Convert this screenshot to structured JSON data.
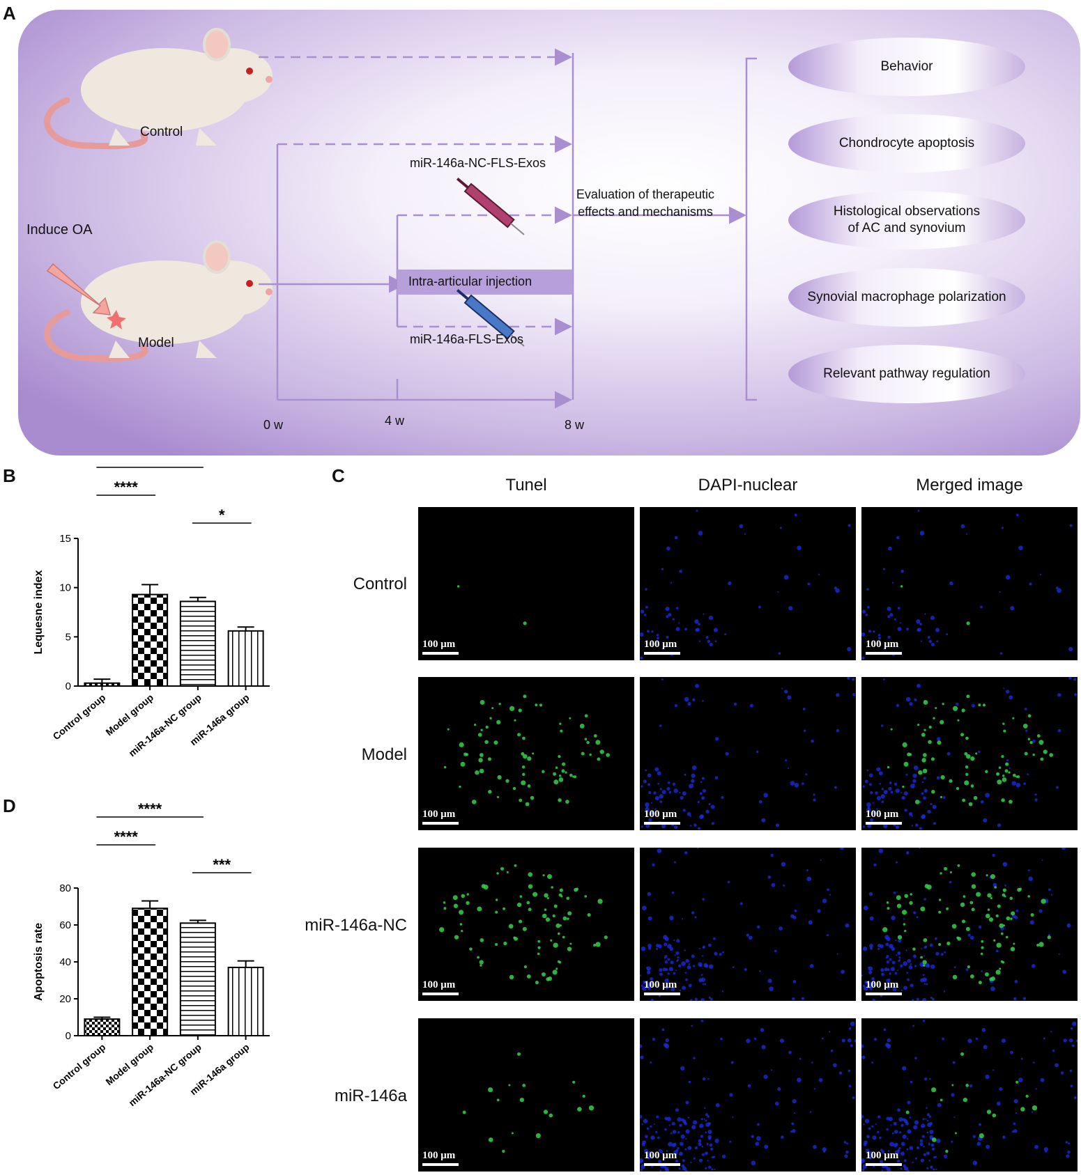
{
  "figure": {
    "panel_labels": {
      "a": "A",
      "b": "B",
      "c": "C",
      "d": "D"
    }
  },
  "panelA": {
    "control_label": "Control",
    "model_label": "Model",
    "induce_label": "Induce OA",
    "injection_label": "Intra-articular injection",
    "nc_exos_label": "miR-146a-NC-FLS-Exos",
    "exos_label": "miR-146a-FLS-Exos",
    "evaluation_line1": "Evaluation of therapeutic",
    "evaluation_line2": "effects and mechanisms",
    "timepoints": [
      "0 w",
      "4 w",
      "8 w"
    ],
    "outcomes": [
      {
        "line1": "Behavior",
        "line2": ""
      },
      {
        "line1": "Chondrocyte apoptosis",
        "line2": ""
      },
      {
        "line1": "Histological observations",
        "line2": "of AC and synovium"
      },
      {
        "line1": "Synovial macrophage polarization",
        "line2": ""
      },
      {
        "line1": "Relevant pathway regulation",
        "line2": ""
      }
    ],
    "colors": {
      "background": "#b9a2d6",
      "arrow": "#a98fd0",
      "oval": "#c2acdf"
    }
  },
  "chart_data": [
    {
      "panel": "B",
      "type": "bar",
      "categories": [
        "Control group",
        "Model group",
        "miR-146a-NC group",
        "miR-146a group"
      ],
      "values": [
        0.3,
        9.3,
        8.6,
        5.6
      ],
      "errors": [
        0.4,
        1.0,
        0.4,
        0.4
      ],
      "patterns": [
        "checker-small",
        "checker",
        "horizontal",
        "vertical"
      ],
      "ylabel": "Lequesne index",
      "ylim": [
        0,
        15
      ],
      "yticks": [
        0,
        5,
        10,
        15
      ],
      "significance": [
        {
          "from": 0,
          "to": 3,
          "label": "***"
        },
        {
          "from": 1,
          "to": 3,
          "label": "**"
        },
        {
          "from": 0,
          "to": 2,
          "label": "****"
        },
        {
          "from": 0,
          "to": 1,
          "label": "****"
        },
        {
          "from": 2,
          "to": 3,
          "label": "*"
        }
      ]
    },
    {
      "panel": "D",
      "type": "bar",
      "categories": [
        "Control group",
        "Model group",
        "miR-146a-NC group",
        "miR-146a group"
      ],
      "values": [
        9,
        69,
        61,
        37
      ],
      "errors": [
        1,
        4,
        1.5,
        3.5
      ],
      "patterns": [
        "checker-small",
        "checker",
        "horizontal",
        "vertical"
      ],
      "ylabel": "Apoptosis rate",
      "ylim": [
        0,
        80
      ],
      "yticks": [
        0,
        20,
        40,
        60,
        80
      ],
      "significance": [
        {
          "from": 0,
          "to": 3,
          "label": "***"
        },
        {
          "from": 1,
          "to": 3,
          "label": "***"
        },
        {
          "from": 0,
          "to": 2,
          "label": "****"
        },
        {
          "from": 0,
          "to": 1,
          "label": "****"
        },
        {
          "from": 2,
          "to": 3,
          "label": "***"
        }
      ]
    }
  ],
  "panelC": {
    "columns": [
      "Tunel",
      "DAPI-nuclear",
      "Merged image"
    ],
    "rows": [
      "Control",
      "Model",
      "miR-146a-NC",
      "miR-146a"
    ],
    "scale_label": "100 μm",
    "green_density": [
      0.02,
      0.7,
      0.8,
      0.15
    ],
    "colors": {
      "tunel": "#35d04a",
      "dapi": "#1a2ad8"
    }
  }
}
